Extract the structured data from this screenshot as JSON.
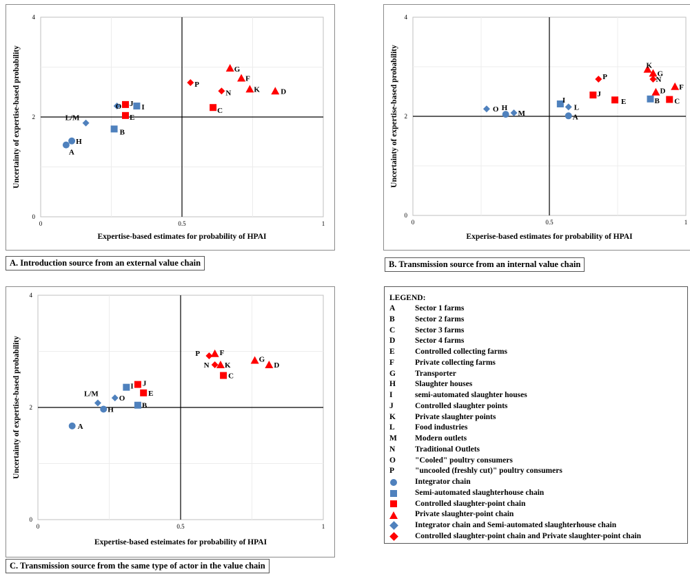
{
  "colors": {
    "blue": "#4f81bd",
    "red": "#ff0000"
  },
  "chart_data": [
    {
      "type": "scatter",
      "caption": "A. Introduction source from an external value chain",
      "xlabel": "Expertise-based estimates for probability of HPAI",
      "ylabel": "Uncertainty of expertise-based probability",
      "xlim": [
        0,
        1
      ],
      "ylim": [
        0,
        4
      ],
      "xticks": [
        "0",
        "0.5",
        "1"
      ],
      "yticks": [
        "0",
        "2",
        "4"
      ],
      "grid": true,
      "reference_lines": {
        "x": 0.5,
        "y": 2
      },
      "points": [
        {
          "label": "A",
          "x": 0.09,
          "y": 1.44,
          "shape": "circle",
          "color": "blue"
        },
        {
          "label": "H",
          "x": 0.11,
          "y": 1.52,
          "shape": "circle",
          "color": "blue"
        },
        {
          "label": "B",
          "x": 0.26,
          "y": 1.76,
          "shape": "square",
          "color": "blue"
        },
        {
          "label": "I",
          "x": 0.34,
          "y": 2.22,
          "shape": "square",
          "color": "blue"
        },
        {
          "label": "L/M",
          "x": 0.16,
          "y": 1.88,
          "shape": "diamond",
          "color": "blue"
        },
        {
          "label": "O",
          "x": 0.27,
          "y": 2.22,
          "shape": "diamond",
          "color": "blue"
        },
        {
          "label": "J",
          "x": 0.3,
          "y": 2.25,
          "shape": "square",
          "color": "red"
        },
        {
          "label": "E",
          "x": 0.3,
          "y": 2.03,
          "shape": "square",
          "color": "red"
        },
        {
          "label": "C",
          "x": 0.61,
          "y": 2.19,
          "shape": "square",
          "color": "red"
        },
        {
          "label": "P",
          "x": 0.53,
          "y": 2.69,
          "shape": "diamond",
          "color": "red"
        },
        {
          "label": "N",
          "x": 0.64,
          "y": 2.52,
          "shape": "diamond",
          "color": "red"
        },
        {
          "label": "G",
          "x": 0.67,
          "y": 2.98,
          "shape": "triangle",
          "color": "red"
        },
        {
          "label": "F",
          "x": 0.71,
          "y": 2.78,
          "shape": "triangle",
          "color": "red"
        },
        {
          "label": "K",
          "x": 0.74,
          "y": 2.56,
          "shape": "triangle",
          "color": "red"
        },
        {
          "label": "D",
          "x": 0.83,
          "y": 2.52,
          "shape": "triangle",
          "color": "red"
        }
      ]
    },
    {
      "type": "scatter",
      "caption": "B. Transmission source from an internal value chain",
      "xlabel": "Experise-based estimates for probability of HPAI",
      "ylabel": "Uncertainty of expertise-based probability",
      "xlim": [
        0,
        1
      ],
      "ylim": [
        0,
        4
      ],
      "xticks": [
        "0",
        "0.5",
        "1"
      ],
      "yticks": [
        "0",
        "2",
        "4"
      ],
      "grid": true,
      "reference_lines": {
        "x": 0.5,
        "y": 2
      },
      "points": [
        {
          "label": "O",
          "x": 0.27,
          "y": 2.15,
          "shape": "diamond",
          "color": "blue"
        },
        {
          "label": "H",
          "x": 0.34,
          "y": 2.04,
          "shape": "circle",
          "color": "blue"
        },
        {
          "label": "M",
          "x": 0.37,
          "y": 2.07,
          "shape": "diamond",
          "color": "blue"
        },
        {
          "label": "I",
          "x": 0.54,
          "y": 2.25,
          "shape": "square",
          "color": "blue"
        },
        {
          "label": "L",
          "x": 0.57,
          "y": 2.19,
          "shape": "diamond",
          "color": "blue"
        },
        {
          "label": "A",
          "x": 0.57,
          "y": 2.01,
          "shape": "circle",
          "color": "blue"
        },
        {
          "label": "B",
          "x": 0.87,
          "y": 2.35,
          "shape": "square",
          "color": "blue"
        },
        {
          "label": "P",
          "x": 0.68,
          "y": 2.75,
          "shape": "diamond",
          "color": "red"
        },
        {
          "label": "J",
          "x": 0.66,
          "y": 2.43,
          "shape": "square",
          "color": "red"
        },
        {
          "label": "E",
          "x": 0.74,
          "y": 2.33,
          "shape": "square",
          "color": "red"
        },
        {
          "label": "C",
          "x": 0.94,
          "y": 2.34,
          "shape": "square",
          "color": "red"
        },
        {
          "label": "K",
          "x": 0.86,
          "y": 2.95,
          "shape": "triangle",
          "color": "red"
        },
        {
          "label": "G",
          "x": 0.88,
          "y": 2.87,
          "shape": "triangle",
          "color": "red"
        },
        {
          "label": "N",
          "x": 0.88,
          "y": 2.75,
          "shape": "diamond",
          "color": "red"
        },
        {
          "label": "D",
          "x": 0.89,
          "y": 2.49,
          "shape": "triangle",
          "color": "red"
        },
        {
          "label": "F",
          "x": 0.96,
          "y": 2.6,
          "shape": "triangle",
          "color": "red"
        }
      ]
    },
    {
      "type": "scatter",
      "caption": "C. Transmission source from the same type of actor in the value chain",
      "xlabel": "Expertise-based esteimates for probability of HPAI",
      "ylabel": "Uncertainty of expertise-based probability",
      "xlim": [
        0,
        1
      ],
      "ylim": [
        0,
        4
      ],
      "xticks": [
        "0",
        "0.5",
        "1"
      ],
      "yticks": [
        "0",
        "2",
        "4"
      ],
      "grid": true,
      "reference_lines": {
        "x": 0.5,
        "y": 2
      },
      "points": [
        {
          "label": "A",
          "x": 0.12,
          "y": 1.67,
          "shape": "circle",
          "color": "blue"
        },
        {
          "label": "H",
          "x": 0.23,
          "y": 1.97,
          "shape": "circle",
          "color": "blue"
        },
        {
          "label": "L/M",
          "x": 0.21,
          "y": 2.08,
          "shape": "diamond",
          "color": "blue"
        },
        {
          "label": "O",
          "x": 0.27,
          "y": 2.17,
          "shape": "diamond",
          "color": "blue"
        },
        {
          "label": "I",
          "x": 0.31,
          "y": 2.36,
          "shape": "square",
          "color": "blue"
        },
        {
          "label": "B",
          "x": 0.35,
          "y": 2.04,
          "shape": "square",
          "color": "blue"
        },
        {
          "label": "J",
          "x": 0.35,
          "y": 2.41,
          "shape": "square",
          "color": "red"
        },
        {
          "label": "E",
          "x": 0.37,
          "y": 2.26,
          "shape": "square",
          "color": "red"
        },
        {
          "label": "P",
          "x": 0.6,
          "y": 2.92,
          "shape": "diamond",
          "color": "red"
        },
        {
          "label": "F",
          "x": 0.62,
          "y": 2.96,
          "shape": "triangle",
          "color": "red"
        },
        {
          "label": "N",
          "x": 0.62,
          "y": 2.76,
          "shape": "diamond",
          "color": "red"
        },
        {
          "label": "K",
          "x": 0.64,
          "y": 2.76,
          "shape": "triangle",
          "color": "red"
        },
        {
          "label": "C",
          "x": 0.65,
          "y": 2.57,
          "shape": "square",
          "color": "red"
        },
        {
          "label": "G",
          "x": 0.76,
          "y": 2.84,
          "shape": "triangle",
          "color": "red"
        },
        {
          "label": "D",
          "x": 0.81,
          "y": 2.76,
          "shape": "triangle",
          "color": "red"
        }
      ]
    }
  ],
  "legend": {
    "title": "LEGEND:",
    "letters": [
      {
        "key": "A",
        "text": "Sector 1 farms"
      },
      {
        "key": "B",
        "text": "Sector 2 farms"
      },
      {
        "key": "C",
        "text": "Sector 3 farms"
      },
      {
        "key": "D",
        "text": "Sector 4 farms"
      },
      {
        "key": "E",
        "text": "Controlled collecting farms"
      },
      {
        "key": "F",
        "text": "Private collecting farms"
      },
      {
        "key": "G",
        "text": "Transporter"
      },
      {
        "key": "H",
        "text": "Slaughter houses"
      },
      {
        "key": "I",
        "text": "semi-automated slaughter houses"
      },
      {
        "key": "J",
        "text": "Controlled slaughter points"
      },
      {
        "key": "K",
        "text": "Private slaughter points"
      },
      {
        "key": "L",
        "text": "Food industries"
      },
      {
        "key": "M",
        "text": "Modern outlets"
      },
      {
        "key": "N",
        "text": "Traditional Outlets"
      },
      {
        "key": "O",
        "text": "\"Cooled\" poultry consumers"
      },
      {
        "key": "P",
        "text": "\"uncooled (freshly cut)\" poultry consumers"
      }
    ],
    "symbols": [
      {
        "shape": "circle",
        "color": "blue",
        "text": "Integrator chain"
      },
      {
        "shape": "square",
        "color": "blue",
        "text": "Semi-automated slaughterhouse chain"
      },
      {
        "shape": "square",
        "color": "red",
        "text": "Controlled slaughter-point chain"
      },
      {
        "shape": "triangle",
        "color": "red",
        "text": "Private slaughter-point chain"
      },
      {
        "shape": "diamond",
        "color": "blue",
        "text": "Integrator chain and Semi-automated slaughterhouse chain"
      },
      {
        "shape": "diamond",
        "color": "red",
        "text": "Controlled slaughter-point chain and Private slaughter-point chain"
      }
    ]
  }
}
